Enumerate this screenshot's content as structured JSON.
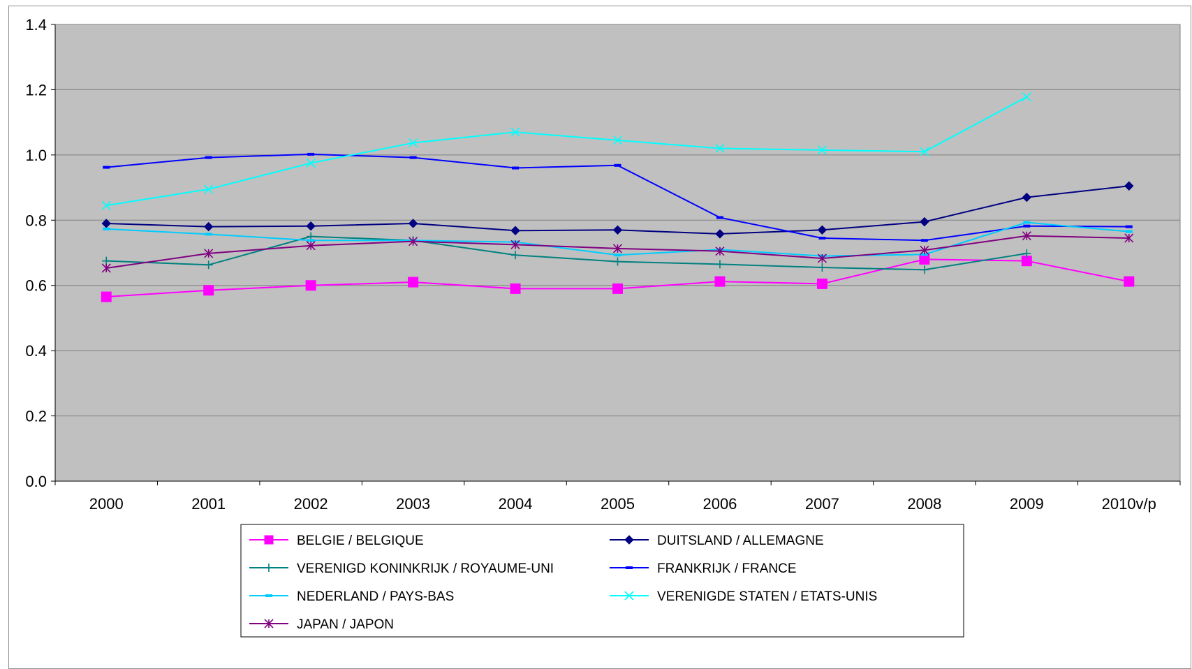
{
  "chart_data": {
    "type": "line",
    "title": "",
    "xlabel": "",
    "ylabel": "",
    "categories": [
      "2000",
      "2001",
      "2002",
      "2003",
      "2004",
      "2005",
      "2006",
      "2007",
      "2008",
      "2009",
      "2010v/p"
    ],
    "ylim": [
      0,
      1.4
    ],
    "yticks": [
      "0.0",
      "0.2",
      "0.4",
      "0.6",
      "0.8",
      "1.0",
      "1.2",
      "1.4"
    ],
    "grid": "horizontal",
    "plot_background": "#c0c0c0",
    "legend_position": "bottom",
    "series": [
      {
        "name": "BELGIE / BELGIQUE",
        "color": "#ff00ff",
        "marker": "square",
        "values": [
          0.565,
          0.585,
          0.6,
          0.61,
          0.59,
          0.59,
          0.612,
          0.605,
          0.68,
          0.675,
          0.612
        ]
      },
      {
        "name": "DUITSLAND / ALLEMAGNE",
        "color": "#000080",
        "marker": "diamond",
        "values": [
          0.79,
          0.78,
          0.782,
          0.79,
          0.768,
          0.77,
          0.758,
          0.77,
          0.795,
          0.87,
          0.905
        ]
      },
      {
        "name": "VERENIGD KONINKRIJK / ROYAUME-UNI",
        "color": "#008080",
        "marker": "plus",
        "values": [
          0.675,
          0.663,
          0.75,
          0.738,
          0.693,
          0.673,
          0.665,
          0.655,
          0.648,
          0.698,
          null
        ]
      },
      {
        "name": "FRANKRIJK / FRANCE",
        "color": "#0000ff",
        "marker": "dash",
        "values": [
          0.962,
          0.992,
          1.002,
          0.992,
          0.96,
          0.968,
          0.808,
          0.745,
          0.738,
          0.782,
          0.78
        ]
      },
      {
        "name": "NEDERLAND / PAYS-BAS",
        "color": "#00ccff",
        "marker": "dash",
        "values": [
          0.773,
          0.757,
          0.738,
          0.738,
          0.733,
          0.693,
          0.71,
          0.69,
          0.695,
          0.793,
          0.765
        ]
      },
      {
        "name": "VERENIGDE STATEN / ETATS-UNIS",
        "color": "#00ffff",
        "marker": "x",
        "values": [
          0.845,
          0.895,
          0.975,
          1.037,
          1.07,
          1.045,
          1.02,
          1.015,
          1.01,
          1.178,
          null
        ]
      },
      {
        "name": "JAPAN / JAPON",
        "color": "#800080",
        "marker": "star",
        "values": [
          0.653,
          0.698,
          0.722,
          0.735,
          0.725,
          0.713,
          0.705,
          0.683,
          0.708,
          0.752,
          0.745
        ]
      }
    ]
  }
}
